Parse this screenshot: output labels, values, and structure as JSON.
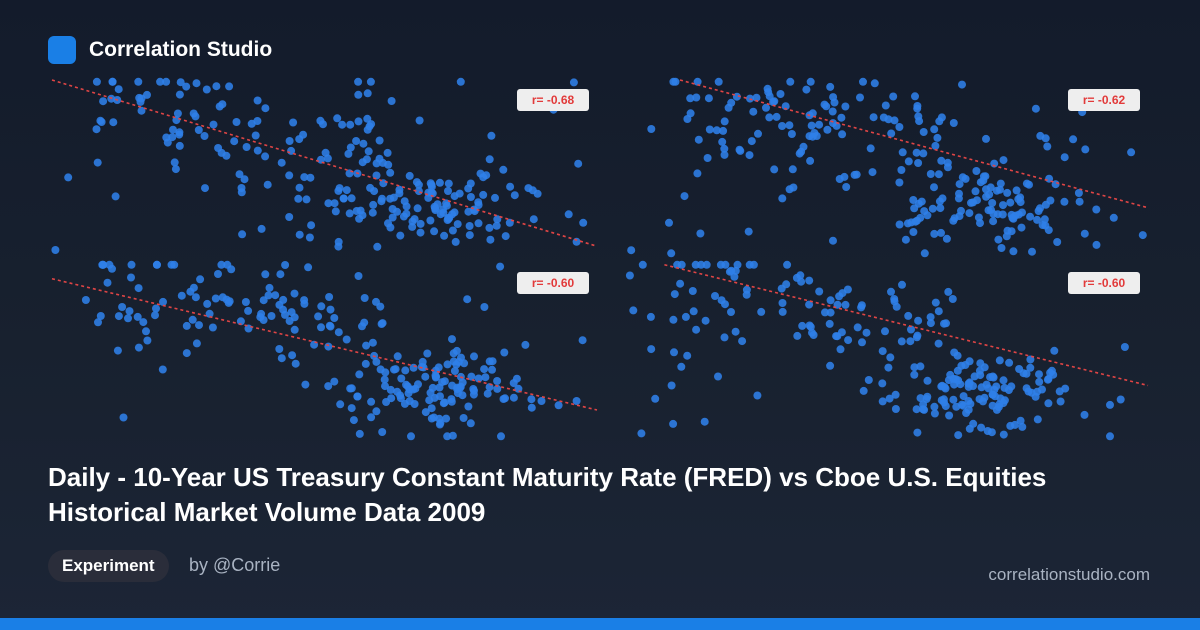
{
  "brand": {
    "name": "Correlation Studio",
    "logo_color": "#1a7fe6"
  },
  "title": "Daily - 10-Year US Treasury Constant Maturity Rate (FRED) vs Cboe U.S. Equities Historical Market Volume Data 2009",
  "tag": "Experiment",
  "author": "by @Corrie",
  "site": "correlationstudio.com",
  "colors": {
    "point": "#2f7fe8",
    "trend": "#e04545",
    "badge_bg": "#eeeeee",
    "badge_text": "#e23a3a",
    "bottom_bar": "#1a7fe6"
  },
  "chart_data": [
    {
      "type": "scatter",
      "title": "",
      "xlabel": "",
      "ylabel": "",
      "grid": false,
      "r_label": "r= -0.68",
      "x": [],
      "y": []
    },
    {
      "type": "scatter",
      "title": "",
      "xlabel": "",
      "ylabel": "",
      "grid": false,
      "r_label": "r= -0.62",
      "x": [],
      "y": []
    },
    {
      "type": "scatter",
      "title": "",
      "xlabel": "",
      "ylabel": "",
      "grid": false,
      "r_label": "r= -0.60",
      "x": [],
      "y": []
    },
    {
      "type": "scatter",
      "title": "",
      "xlabel": "",
      "ylabel": "",
      "grid": false,
      "r_label": "r= -0.60",
      "x": [],
      "y": []
    }
  ]
}
